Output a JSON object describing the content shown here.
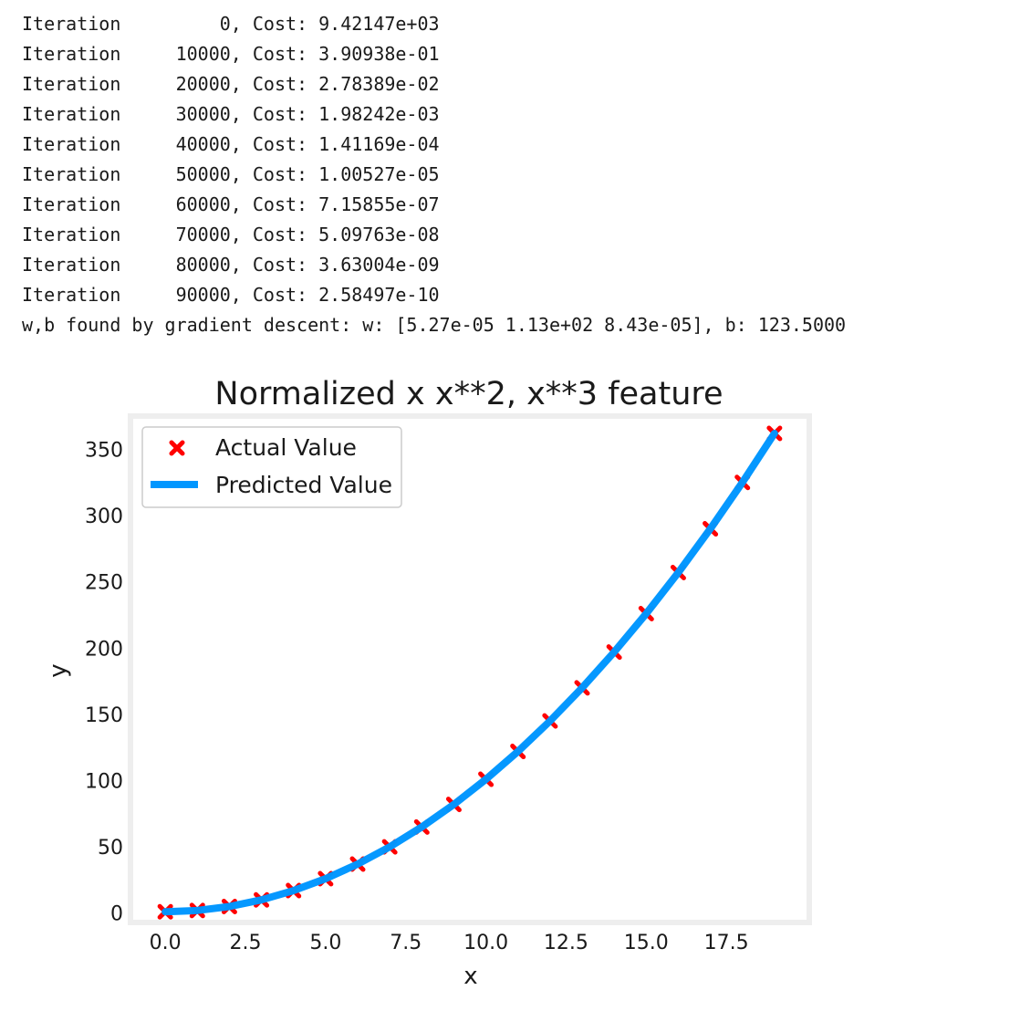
{
  "console": {
    "log_lines": [
      "Iteration         0, Cost: 9.42147e+03",
      "Iteration     10000, Cost: 3.90938e-01",
      "Iteration     20000, Cost: 2.78389e-02",
      "Iteration     30000, Cost: 1.98242e-03",
      "Iteration     40000, Cost: 1.41169e-04",
      "Iteration     50000, Cost: 1.00527e-05",
      "Iteration     60000, Cost: 7.15855e-07",
      "Iteration     70000, Cost: 5.09763e-08",
      "Iteration     80000, Cost: 3.63004e-09",
      "Iteration     90000, Cost: 2.58497e-10"
    ],
    "result_line": "w,b found by gradient descent: w: [5.27e-05 1.13e+02 8.43e-05], b: 123.5000"
  },
  "chart_data": {
    "type": "scatter",
    "title": "Normalized x x**2, x**3 feature",
    "xlabel": "x",
    "ylabel": "y",
    "xlim": [
      -1.0,
      20.0
    ],
    "ylim": [
      -5,
      373
    ],
    "xticks": [
      0.0,
      2.5,
      5.0,
      7.5,
      10.0,
      12.5,
      15.0,
      17.5
    ],
    "xtick_labels": [
      "0.0",
      "2.5",
      "5.0",
      "7.5",
      "10.0",
      "12.5",
      "15.0",
      "17.5"
    ],
    "yticks": [
      0,
      50,
      100,
      150,
      200,
      250,
      300,
      350
    ],
    "ytick_labels": [
      "0",
      "50",
      "100",
      "150",
      "200",
      "250",
      "300",
      "350"
    ],
    "grid": false,
    "legend_position": "top-left",
    "series": [
      {
        "name": "Actual Value",
        "kind": "scatter",
        "marker": "X",
        "color": "#ff0000",
        "x": [
          0,
          1,
          2,
          3,
          4,
          5,
          6,
          7,
          8,
          9,
          10,
          11,
          12,
          13,
          14,
          15,
          16,
          17,
          18,
          19
        ],
        "y": [
          1,
          2,
          5,
          10,
          17,
          26,
          37,
          50,
          65,
          82,
          101,
          122,
          145,
          170,
          197,
          226,
          257,
          290,
          325,
          362
        ]
      },
      {
        "name": "Predicted Value",
        "kind": "line",
        "color": "#0096ff",
        "x": [
          0,
          1,
          2,
          3,
          4,
          5,
          6,
          7,
          8,
          9,
          10,
          11,
          12,
          13,
          14,
          15,
          16,
          17,
          18,
          19
        ],
        "y": [
          1,
          2,
          5,
          10,
          17,
          26,
          37,
          50,
          65,
          82,
          101,
          122,
          145,
          170,
          197,
          226,
          257,
          290,
          325,
          362
        ]
      }
    ]
  }
}
